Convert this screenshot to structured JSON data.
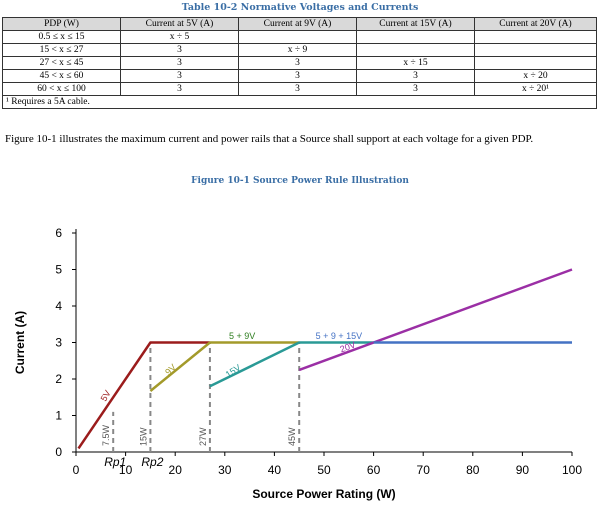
{
  "table": {
    "caption": "Table 10-2 Normative Voltages and Currents",
    "headers": [
      "PDP (W)",
      "Current at 5V (A)",
      "Current at 9V (A)",
      "Current at 15V (A)",
      "Current at 20V (A)"
    ],
    "rows": [
      [
        "0.5 ≤ x ≤ 15",
        "x ÷ 5",
        "",
        "",
        ""
      ],
      [
        "15 < x ≤ 27",
        "3",
        "x ÷ 9",
        "",
        ""
      ],
      [
        "27 < x ≤ 45",
        "3",
        "3",
        "x ÷ 15",
        ""
      ],
      [
        "45 < x ≤ 60",
        "3",
        "3",
        "3",
        "x ÷ 20"
      ],
      [
        "60 < x ≤ 100",
        "3",
        "3",
        "3",
        "x ÷ 20¹"
      ]
    ],
    "footnote": "¹ Requires a 5A cable."
  },
  "paragraph": "Figure 10-1 illustrates the maximum current and power rails that a Source shall support at each voltage for a given PDP.",
  "figure_caption": "Figure 10-1 Source Power Rule Illustration",
  "chart_data": {
    "type": "line",
    "xlabel": "Source Power Rating (W)",
    "ylabel": "Current (A)",
    "xlim": [
      0,
      100
    ],
    "ylim": [
      0,
      6
    ],
    "xticks": [
      0,
      10,
      20,
      30,
      40,
      50,
      60,
      70,
      80,
      90,
      100
    ],
    "yticks": [
      0,
      1,
      2,
      3,
      4,
      5,
      6
    ],
    "grid": false,
    "series": [
      {
        "name": "5V",
        "color": "#9b1c1c",
        "points": [
          [
            0.5,
            0.1
          ],
          [
            15,
            3
          ],
          [
            27,
            3
          ]
        ]
      },
      {
        "name": "9V",
        "color": "#a39a2a",
        "points": [
          [
            15,
            1.67
          ],
          [
            27,
            3
          ],
          [
            45,
            3
          ]
        ]
      },
      {
        "name": "15V",
        "color": "#2a9a96",
        "points": [
          [
            27,
            1.8
          ],
          [
            45,
            3
          ],
          [
            60,
            3
          ]
        ]
      },
      {
        "name": "20V",
        "color": "#9b2fa5",
        "points": [
          [
            45,
            2.25
          ],
          [
            100,
            5
          ]
        ]
      },
      {
        "name": "",
        "color": "#4472c4",
        "points": [
          [
            60,
            3
          ],
          [
            100,
            3
          ]
        ]
      }
    ],
    "vlines": [
      {
        "x": 7.5,
        "label": "7.5W",
        "y_top": 1.1
      },
      {
        "x": 15,
        "label": "15W",
        "y_top": 3
      },
      {
        "x": 27,
        "label": "27W",
        "y_top": 3
      },
      {
        "x": 45,
        "label": "45W",
        "y_top": 3
      }
    ],
    "annotations": [
      {
        "text": "5 + 9V",
        "x": 33.5,
        "y": 3.1,
        "color": "#2e7d1f"
      },
      {
        "text": "5 + 9 + 15V",
        "x": 53,
        "y": 3.1,
        "color": "#4472c4"
      },
      {
        "text": "5V",
        "x": 6.5,
        "y": 1.5,
        "color": "#9b1c1c",
        "rotate": -60
      },
      {
        "text": "9V",
        "x": 19.5,
        "y": 2.2,
        "color": "#a39a2a",
        "rotate": -45
      },
      {
        "text": "15V",
        "x": 32,
        "y": 2.15,
        "color": "#2a9a96",
        "rotate": -33
      },
      {
        "text": "20V",
        "x": 55,
        "y": 2.8,
        "color": "#9b2fa5",
        "rotate": -20
      }
    ],
    "below_axis_labels": [
      {
        "text": "Rp1",
        "x": 7.5
      },
      {
        "text": "Rp2",
        "x": 15
      }
    ]
  }
}
